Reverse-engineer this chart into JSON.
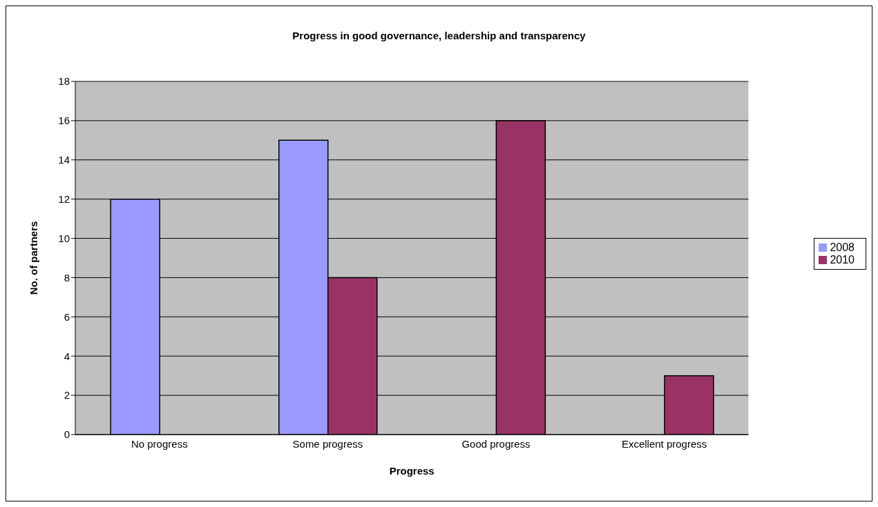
{
  "chart_data": {
    "type": "bar",
    "title": "Progress in good governance, leadership and transparency",
    "xlabel": "Progress",
    "ylabel": "No. of partners",
    "categories": [
      "No progress",
      "Some progress",
      "Good progress",
      "Excellent progress"
    ],
    "series": [
      {
        "name": "2008",
        "color": "#9999ff",
        "values": [
          12,
          15,
          0,
          0
        ]
      },
      {
        "name": "2010",
        "color": "#993366",
        "values": [
          0,
          8,
          16,
          3
        ]
      }
    ],
    "ylim": [
      0,
      18
    ],
    "yticks": [
      0,
      2,
      4,
      6,
      8,
      10,
      12,
      14,
      16,
      18
    ],
    "grid": "y",
    "legend": "right"
  }
}
